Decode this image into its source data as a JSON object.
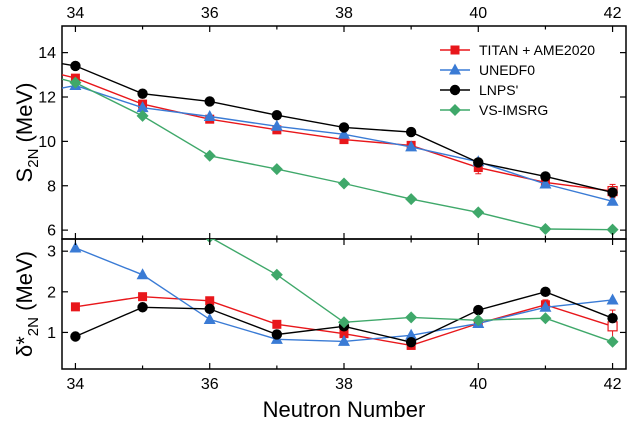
{
  "chart_data": [
    {
      "type": "line",
      "panel": "top",
      "ylabel": "S",
      "ylabel_sub": "2N",
      "ylabel_unit": " (MeV)",
      "xlim": [
        33.8,
        42.2
      ],
      "ylim": [
        5.6,
        15.2
      ],
      "yticks": [
        6,
        8,
        10,
        12,
        14
      ],
      "top_xticks": [
        34,
        36,
        38,
        40,
        42
      ],
      "legend_position": "top-right",
      "series": [
        {
          "name": "TITAN + AME2020",
          "color": "#e8171b",
          "marker": "square",
          "x": [
            33.8,
            34,
            35,
            36,
            37,
            38,
            39,
            40,
            41,
            42
          ],
          "y": [
            13.0,
            12.85,
            11.68,
            11.0,
            10.52,
            10.08,
            9.82,
            8.82,
            8.15,
            7.76
          ],
          "err": [
            null,
            null,
            null,
            null,
            null,
            null,
            null,
            0.28,
            null,
            0.3
          ],
          "open_last": true
        },
        {
          "name": "UNEDF0",
          "color": "#3a7bd5",
          "marker": "triangle",
          "x": [
            33.8,
            34,
            35,
            36,
            37,
            38,
            39,
            40,
            41,
            42
          ],
          "y": [
            12.4,
            12.52,
            11.52,
            11.12,
            10.68,
            10.32,
            9.75,
            9.08,
            8.08,
            7.3
          ],
          "err": [],
          "open_last": false
        },
        {
          "name": "LNPS'",
          "color": "#000000",
          "marker": "circle",
          "x": [
            33.8,
            34,
            35,
            36,
            37,
            38,
            39,
            40,
            41,
            42
          ],
          "y": [
            13.5,
            13.4,
            12.15,
            11.8,
            11.18,
            10.63,
            10.42,
            9.05,
            8.42,
            7.7
          ],
          "err": [],
          "open_last": false
        },
        {
          "name": "VS-IMSRG",
          "color": "#3fa86a",
          "marker": "diamond",
          "x": [
            33.8,
            34,
            35,
            36,
            37,
            38,
            39,
            40,
            41,
            42
          ],
          "y": [
            12.8,
            12.65,
            11.15,
            9.35,
            8.75,
            8.1,
            7.4,
            6.8,
            6.05,
            6.02
          ],
          "err": [],
          "open_last": false
        }
      ]
    },
    {
      "type": "line",
      "panel": "bottom",
      "ylabel": "δ*",
      "ylabel_sub": "2N",
      "ylabel_unit": " (MeV)",
      "xlabel": "Neutron Number",
      "xlim": [
        33.8,
        42.2
      ],
      "ylim": [
        0.1,
        3.3
      ],
      "yticks": [
        1,
        2,
        3
      ],
      "xticks": [
        34,
        36,
        38,
        40,
        42
      ],
      "series": [
        {
          "name": "TITAN + AME2020",
          "color": "#e8171b",
          "marker": "square",
          "x": [
            34,
            35,
            36,
            37,
            38,
            39,
            40,
            41,
            42
          ],
          "y": [
            1.63,
            1.88,
            1.78,
            1.2,
            0.97,
            0.68,
            1.22,
            1.68,
            1.15
          ],
          "err": [
            null,
            null,
            null,
            null,
            null,
            null,
            null,
            0.12,
            0.4
          ],
          "open_last": true
        },
        {
          "name": "UNEDF0",
          "color": "#3a7bd5",
          "marker": "triangle",
          "x": [
            34,
            35,
            36,
            37,
            38,
            39,
            40,
            41,
            42
          ],
          "y": [
            3.08,
            2.42,
            1.32,
            0.83,
            0.78,
            0.93,
            1.22,
            1.62,
            1.8
          ],
          "err": [],
          "open_last": false
        },
        {
          "name": "LNPS'",
          "color": "#000000",
          "marker": "circle",
          "x": [
            34,
            35,
            36,
            37,
            38,
            39,
            40,
            41,
            42
          ],
          "y": [
            0.9,
            1.62,
            1.58,
            0.95,
            1.15,
            0.76,
            1.55,
            2.0,
            1.35
          ],
          "err": [],
          "open_last": false
        },
        {
          "name": "VS-IMSRG",
          "color": "#3fa86a",
          "marker": "diamond",
          "x": [
            36,
            37,
            38,
            39,
            40,
            41,
            42
          ],
          "y": [
            3.35,
            2.42,
            1.25,
            1.37,
            1.3,
            1.35,
            0.77
          ],
          "err": [],
          "open_last": false
        }
      ]
    }
  ]
}
